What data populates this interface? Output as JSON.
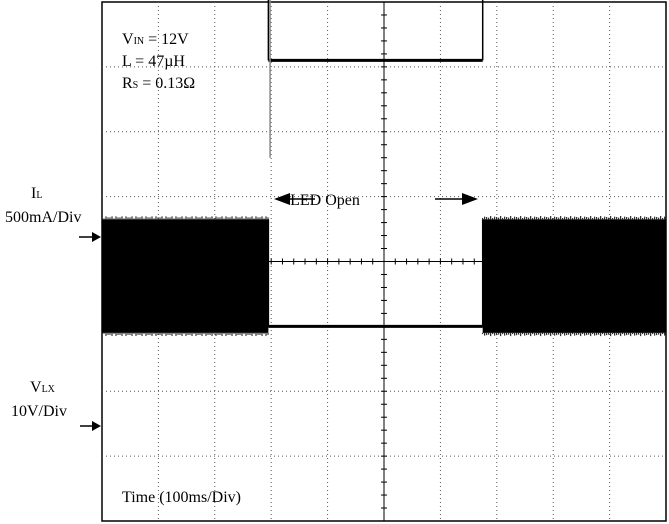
{
  "chart_data": {
    "type": "line",
    "title": "",
    "conditions": {
      "vin": {
        "sym": "V",
        "sub": "IN",
        "value": " = 12V"
      },
      "inductance": "L = 47µH",
      "rs": {
        "sym": "R",
        "sub": "S",
        "value": " = 0.13Ω"
      }
    },
    "annotation": "LED Open",
    "xlabel": "Time (100ms/Div)",
    "x_divisions": 10,
    "y_divisions": 8,
    "grid": true,
    "xlim": [
      0,
      10
    ],
    "series": [
      {
        "name": "IL",
        "label_sym": "I",
        "label_sub": "L",
        "scale": "500mA/Div",
        "offset_div": 3,
        "segments": [
          {
            "x0": 0,
            "x1": 2.95,
            "kind": "band",
            "lo": 4.6,
            "hi": 5.15
          },
          {
            "x0": 2.95,
            "x1": 6.75,
            "kind": "flat",
            "level": 3.1
          },
          {
            "x0": 6.75,
            "x1": 10,
            "kind": "band",
            "lo": 4.6,
            "hi": 5.15
          }
        ],
        "spike": {
          "x": 2.98,
          "lo": 1.6,
          "hi": 5.1
        },
        "color": "#000000"
      },
      {
        "name": "VLX",
        "label_sym": "V",
        "label_sub": "LX",
        "scale": "10V/Div",
        "offset_div": -1.1,
        "segments": [
          {
            "x0": 0,
            "x1": 2.95,
            "kind": "band",
            "lo": -1.1,
            "hi": 0.65
          },
          {
            "x0": 2.95,
            "x1": 6.75,
            "kind": "flat",
            "level": -1.0
          },
          {
            "x0": 6.75,
            "x1": 10,
            "kind": "band",
            "lo": -1.1,
            "hi": 0.65
          }
        ],
        "color": "#000000"
      }
    ]
  }
}
